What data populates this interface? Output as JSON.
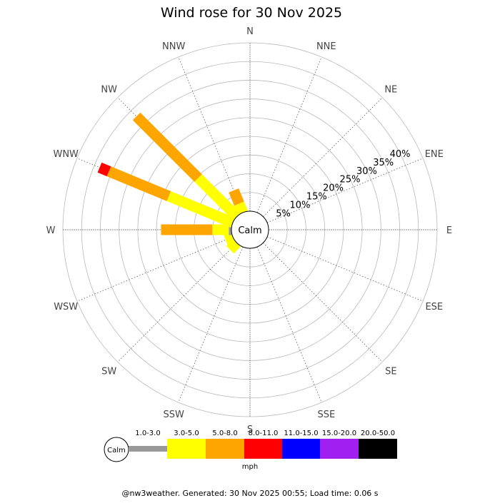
{
  "title": "Wind rose for 30 Nov 2025",
  "calm_label": "Calm",
  "footer": "@nw3weather. Generated: 30 Nov 2025 00:55; Load time: 0.06 s",
  "chart_data": {
    "type": "wind-rose",
    "directions": [
      "N",
      "NNE",
      "NE",
      "ENE",
      "E",
      "ESE",
      "SE",
      "SSE",
      "S",
      "SSW",
      "SW",
      "WSW",
      "W",
      "WNW",
      "NW",
      "NNW"
    ],
    "radial_ticks": [
      "5%",
      "10%",
      "15%",
      "20%",
      "25%",
      "30%",
      "35%",
      "40%"
    ],
    "radial_max_percent": 45,
    "units_label": "mph",
    "speed_bins": [
      {
        "label": "1.0-3.0",
        "color": "#999999"
      },
      {
        "label": "3.0-5.0",
        "color": "#ffff00"
      },
      {
        "label": "5.0-8.0",
        "color": "#ffa500"
      },
      {
        "label": "8.0-11.0",
        "color": "#ff0000"
      },
      {
        "label": "11.0-15.0",
        "color": "#0000ff"
      },
      {
        "label": "15.0-20.0",
        "color": "#a020f0"
      },
      {
        "label": "20.0-50.0",
        "color": "#000000"
      }
    ],
    "sectors": [
      {
        "direction": "SW",
        "cumulative_percent": [
          0,
          2.6
        ]
      },
      {
        "direction": "WSW",
        "cumulative_percent": [
          0,
          2.1
        ]
      },
      {
        "direction": "W",
        "cumulative_percent": [
          0.7,
          5.1,
          18.8
        ]
      },
      {
        "direction": "WNW",
        "cumulative_percent": [
          0,
          18.5,
          35.8,
          38.5
        ]
      },
      {
        "direction": "NW",
        "cumulative_percent": [
          0,
          14.6,
          37.9
        ]
      },
      {
        "direction": "NNW",
        "cumulative_percent": [
          0,
          2.6,
          6.4
        ]
      }
    ]
  }
}
